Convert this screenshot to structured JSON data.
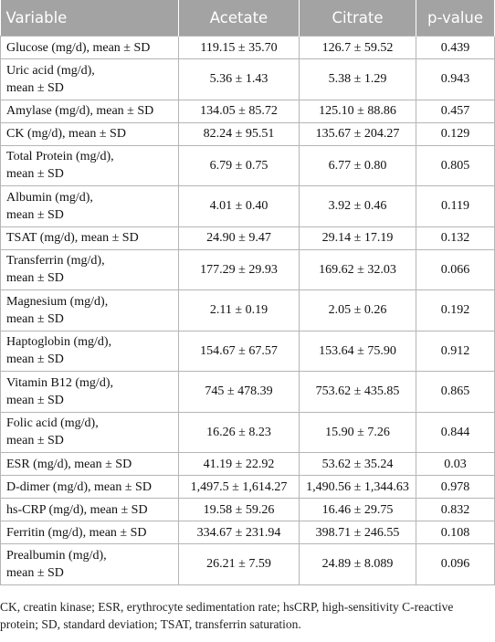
{
  "table": {
    "header": [
      "Variable",
      "Acetate",
      "Citrate",
      "p-value"
    ],
    "rows": [
      [
        "Glucose (mg/d), mean ± SD",
        "119.15 ± 35.70",
        "126.7 ± 59.52",
        "0.439"
      ],
      [
        [
          "Uric acid (mg/d),",
          "mean ± SD"
        ],
        "5.36 ± 1.43",
        "5.38 ± 1.29",
        "0.943"
      ],
      [
        "Amylase (mg/d), mean ± SD",
        "134.05 ± 85.72",
        "125.10 ± 88.86",
        "0.457"
      ],
      [
        "CK (mg/d), mean ± SD",
        "82.24 ± 95.51",
        "135.67 ± 204.27",
        "0.129"
      ],
      [
        [
          "Total Protein (mg/d),",
          "mean ± SD"
        ],
        "6.79 ± 0.75",
        "6.77 ± 0.80",
        "0.805"
      ],
      [
        [
          "Albumin (mg/d),",
          "mean ± SD"
        ],
        "4.01 ± 0.40",
        "3.92 ± 0.46",
        "0.119"
      ],
      [
        "TSAT (mg/d), mean ± SD",
        "24.90 ± 9.47",
        "29.14 ± 17.19",
        "0.132"
      ],
      [
        [
          "Transferrin (mg/d),",
          "mean ± SD"
        ],
        "177.29 ± 29.93",
        "169.62 ± 32.03",
        "0.066"
      ],
      [
        [
          "Magnesium (mg/d),",
          "mean ± SD"
        ],
        "2.11 ± 0.19",
        "2.05 ± 0.26",
        "0.192"
      ],
      [
        [
          "Haptoglobin (mg/d),",
          "mean ± SD"
        ],
        "154.67 ± 67.57",
        "153.64 ± 75.90",
        "0.912"
      ],
      [
        [
          "Vitamin B12 (mg/d),",
          "mean ± SD"
        ],
        "745 ± 478.39",
        "753.62 ± 435.85",
        "0.865"
      ],
      [
        [
          "Folic acid (mg/d),",
          "mean ± SD"
        ],
        "16.26 ± 8.23",
        "15.90 ± 7.26",
        "0.844"
      ],
      [
        "ESR (mg/d), mean ± SD",
        "41.19 ± 22.92",
        "53.62 ± 35.24",
        "0.03"
      ],
      [
        "D-dimer (mg/d), mean ± SD",
        "1,497.5 ± 1,614.27",
        "1,490.56 ± 1,344.63",
        "0.978"
      ],
      [
        "hs-CRP (mg/d), mean ± SD",
        "19.58 ± 59.26",
        "16.46 ± 29.75",
        "0.832"
      ],
      [
        "Ferritin (mg/d), mean ± SD",
        "334.67 ± 231.94",
        "398.71 ± 246.55",
        "0.108"
      ],
      [
        [
          "Prealbumin (mg/d),",
          "mean ± SD"
        ],
        "26.21 ± 7.59",
        "24.89 ± 8.089",
        "0.096"
      ]
    ]
  },
  "footnote": "CK, creatin kinase; ESR, erythrocyte sedimentation rate; hsCRP, high-sensitivity C-reactive protein; SD, standard deviation; TSAT, transferrin saturation."
}
